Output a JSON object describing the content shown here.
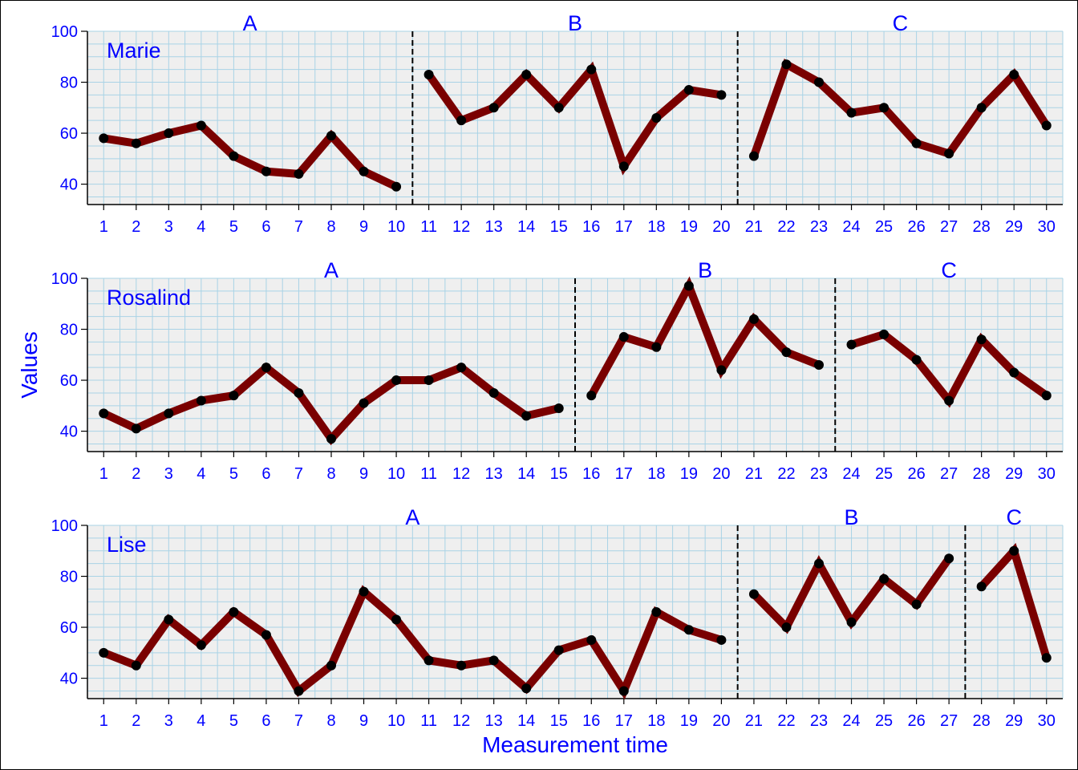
{
  "chart_data": {
    "type": "line",
    "ylabel": "Values",
    "xlabel": "Measurement time",
    "ylim": [
      32,
      100
    ],
    "yticks": [
      40,
      60,
      80,
      100
    ],
    "xlim": [
      0.5,
      30.5
    ],
    "x": [
      1,
      2,
      3,
      4,
      5,
      6,
      7,
      8,
      9,
      10,
      11,
      12,
      13,
      14,
      15,
      16,
      17,
      18,
      19,
      20,
      21,
      22,
      23,
      24,
      25,
      26,
      27,
      28,
      29,
      30
    ],
    "grid": true,
    "colors": {
      "line": "#7a0000",
      "point": "#000000",
      "text": "#0000ff",
      "panel_bg": "#efefef",
      "grid": "#a9d3e6"
    },
    "panels": [
      {
        "name": "Marie",
        "phases": [
          {
            "label": "A",
            "start": 1,
            "end": 10
          },
          {
            "label": "B",
            "start": 11,
            "end": 20
          },
          {
            "label": "C",
            "start": 21,
            "end": 30
          }
        ],
        "values": [
          58,
          56,
          60,
          63,
          51,
          45,
          44,
          59,
          45,
          39,
          83,
          65,
          70,
          83,
          70,
          85,
          47,
          66,
          77,
          75,
          51,
          87,
          80,
          68,
          70,
          56,
          52,
          70,
          83,
          63
        ]
      },
      {
        "name": "Rosalind",
        "phases": [
          {
            "label": "A",
            "start": 1,
            "end": 15
          },
          {
            "label": "B",
            "start": 16,
            "end": 23
          },
          {
            "label": "C",
            "start": 24,
            "end": 30
          }
        ],
        "values": [
          47,
          41,
          47,
          52,
          54,
          65,
          55,
          37,
          51,
          60,
          60,
          65,
          55,
          46,
          49,
          54,
          77,
          73,
          97,
          64,
          84,
          71,
          66,
          74,
          78,
          68,
          52,
          76,
          63,
          54
        ]
      },
      {
        "name": "Lise",
        "phases": [
          {
            "label": "A",
            "start": 1,
            "end": 20
          },
          {
            "label": "B",
            "start": 21,
            "end": 27
          },
          {
            "label": "C",
            "start": 28,
            "end": 30
          }
        ],
        "values": [
          50,
          45,
          63,
          53,
          66,
          57,
          35,
          45,
          74,
          63,
          47,
          45,
          47,
          36,
          51,
          55,
          35,
          66,
          59,
          55,
          73,
          60,
          85,
          62,
          79,
          69,
          87,
          76,
          90,
          48
        ]
      }
    ]
  }
}
